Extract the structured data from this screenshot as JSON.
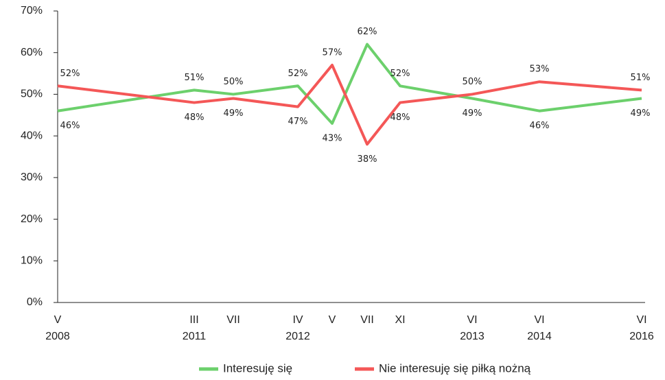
{
  "chart_data": {
    "type": "line",
    "categories": [
      [
        "V",
        "2008"
      ],
      [
        "III",
        "2011"
      ],
      [
        "VII"
      ],
      [
        "IV",
        "2012"
      ],
      [
        "V"
      ],
      [
        "VII"
      ],
      [
        "XI"
      ],
      [
        "VI",
        "2013"
      ],
      [
        "VI",
        "2014"
      ],
      [
        "VI",
        "2016"
      ]
    ],
    "series": [
      {
        "name": "Interesuję się",
        "color": "#6cd06c",
        "values": [
          46,
          51,
          50,
          52,
          43,
          62,
          52,
          49,
          46,
          49
        ],
        "value_labels": [
          "46%",
          "51%",
          "50%",
          "52%",
          "43%",
          "62%",
          "52%",
          "49%",
          "46%",
          "49%"
        ]
      },
      {
        "name": "Nie interesuję się piłką nożną",
        "color": "#f45757",
        "values": [
          52,
          48,
          49,
          47,
          57,
          38,
          48,
          50,
          53,
          51
        ],
        "value_labels": [
          "52%",
          "48%",
          "49%",
          "47%",
          "57%",
          "38%",
          "48%",
          "50%",
          "53%",
          "51%"
        ]
      }
    ],
    "ylim": [
      0,
      70
    ],
    "yticks": [
      {
        "value": 0,
        "label": "0%"
      },
      {
        "value": 10,
        "label": "10%"
      },
      {
        "value": 20,
        "label": "20%"
      },
      {
        "value": 30,
        "label": "30%"
      },
      {
        "value": 40,
        "label": "40%"
      },
      {
        "value": 50,
        "label": "50%"
      },
      {
        "value": 60,
        "label": "60%"
      },
      {
        "value": 70,
        "label": "70%"
      }
    ],
    "legend": "bottom"
  }
}
